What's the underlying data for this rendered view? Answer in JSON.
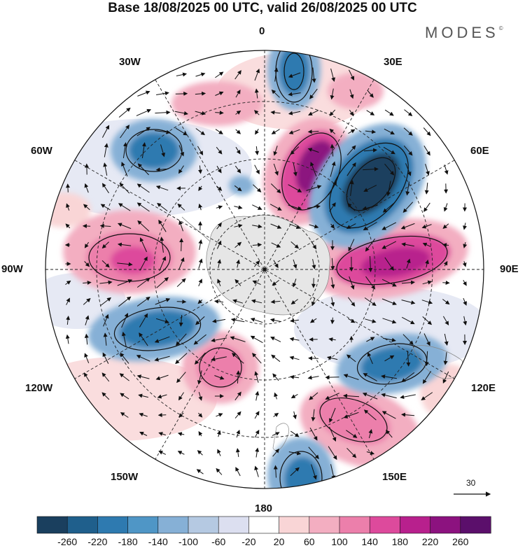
{
  "header": {
    "title": "Base 18/08/2025 00 UTC, valid 26/08/2025 00 UTC",
    "brand": "MODES",
    "brand_mark": "©"
  },
  "map": {
    "projection": "south polar stereographic",
    "longitude_labels": [
      "0",
      "30E",
      "60E",
      "90E",
      "120E",
      "150E",
      "180",
      "150W",
      "120W",
      "90W",
      "60W",
      "30W"
    ]
  },
  "reference_vector": {
    "label": "30"
  },
  "colorbar": {
    "ticks": [
      "-260",
      "-220",
      "-180",
      "-140",
      "-100",
      "-60",
      "-20",
      "20",
      "60",
      "100",
      "140",
      "180",
      "220",
      "260"
    ],
    "colors": [
      "#1a3f5e",
      "#1f5f8c",
      "#2e7ab0",
      "#4f96c6",
      "#86b0d6",
      "#b5c9e2",
      "#dcdff0",
      "#ffffff",
      "#f9d5d6",
      "#f3aec1",
      "#ec7fab",
      "#dd4a9c",
      "#b8208d",
      "#8c127f",
      "#5b0f6b"
    ]
  },
  "colors": {
    "negative_strong": "#1a3f5e",
    "positive_strong": "#8c127f",
    "land": "#e6e6e6"
  }
}
